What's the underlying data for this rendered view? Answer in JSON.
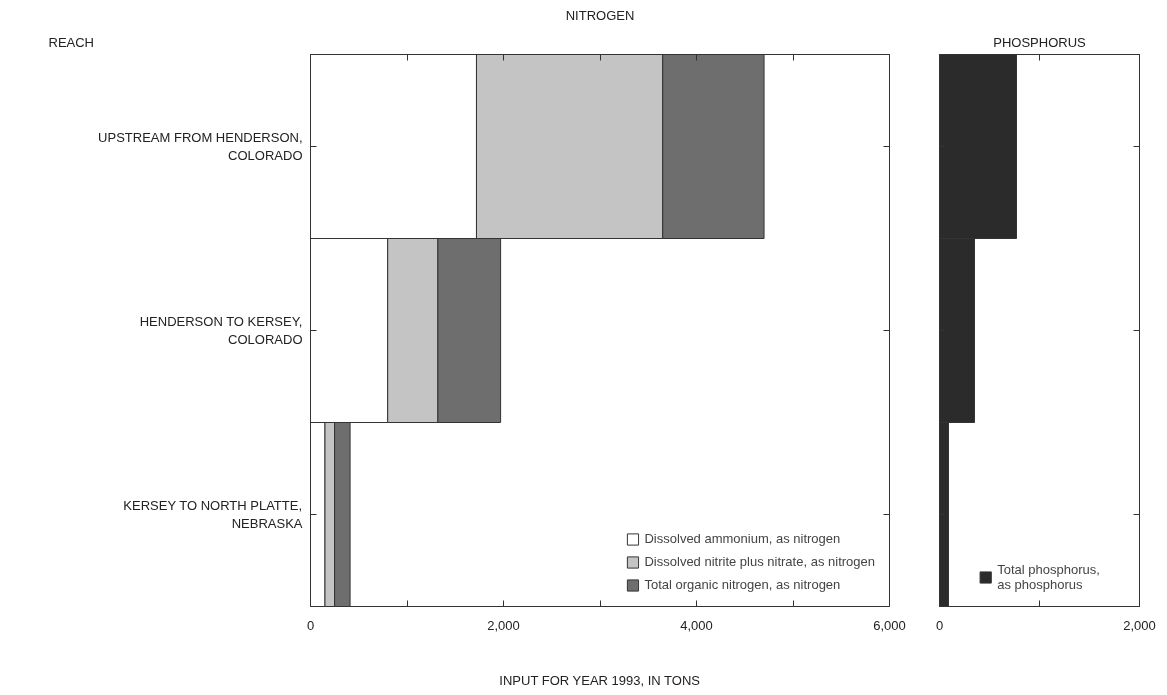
{
  "chart_data": [
    {
      "type": "bar",
      "orientation": "horizontal",
      "stacked": true,
      "title": "NITROGEN",
      "ylabel": "REACH",
      "xlabel": "INPUT FOR YEAR 1993, IN TONS",
      "categories": [
        "UPSTREAM FROM HENDERSON, COLORADO",
        "HENDERSON TO KERSEY, COLORADO",
        "KERSEY TO NORTH PLATTE, NEBRASKA"
      ],
      "series": [
        {
          "name": "Dissolved ammonium, as nitrogen",
          "color": "#ffffff",
          "values": [
            1720,
            800,
            150
          ]
        },
        {
          "name": "Dissolved nitrite plus nitrate, as nitrogen",
          "color": "#c4c4c4",
          "values": [
            1930,
            520,
            100
          ]
        },
        {
          "name": "Total organic nitrogen, as nitrogen",
          "color": "#6e6e6e",
          "values": [
            1050,
            650,
            160
          ]
        }
      ],
      "xlim": [
        0,
        6000
      ],
      "xticks": [
        0,
        {
          "value": 1000,
          "label": null
        },
        {
          "value": 2000,
          "label": "2,000"
        },
        {
          "value": 3000,
          "label": null
        },
        {
          "value": 4000,
          "label": "4,000"
        },
        {
          "value": 5000,
          "label": null
        },
        {
          "value": 6000,
          "label": "6,000"
        }
      ],
      "legend": "bottom right",
      "grid": false
    },
    {
      "type": "bar",
      "orientation": "horizontal",
      "title": "PHOSPHORUS",
      "categories": [
        "UPSTREAM FROM HENDERSON, COLORADO",
        "HENDERSON TO KERSEY, COLORADO",
        "KERSEY TO NORTH PLATTE, NEBRASKA"
      ],
      "series": [
        {
          "name": "Total phosphorus, as phosphorus",
          "color": "#2b2b2b",
          "values": [
            770,
            350,
            90
          ]
        }
      ],
      "xlim": [
        0,
        2000
      ],
      "xticks": [
        0,
        {
          "value": 1000,
          "label": null
        },
        {
          "value": 2000,
          "label": "2,000"
        }
      ],
      "tick_labels": "x",
      "legend": "bottom",
      "grid": false
    }
  ]
}
